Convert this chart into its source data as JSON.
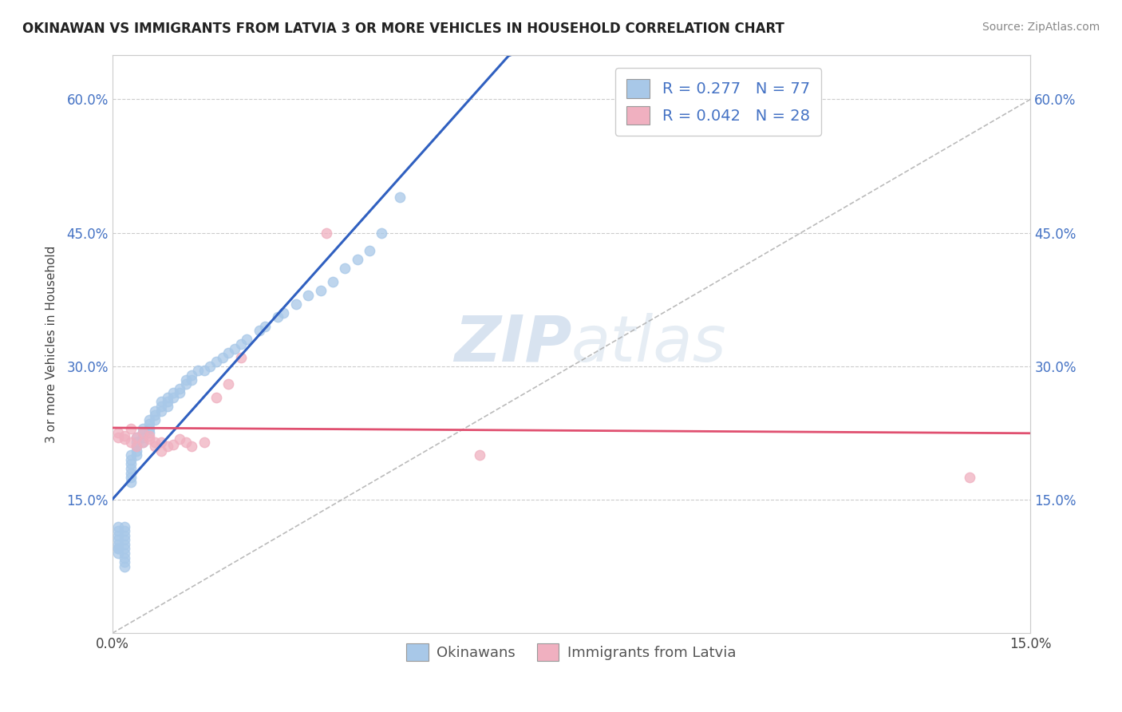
{
  "title": "OKINAWAN VS IMMIGRANTS FROM LATVIA 3 OR MORE VEHICLES IN HOUSEHOLD CORRELATION CHART",
  "source": "Source: ZipAtlas.com",
  "ylabel": "3 or more Vehicles in Household",
  "xlim": [
    0.0,
    0.15
  ],
  "ylim": [
    0.0,
    0.65
  ],
  "ytick_positions": [
    0.15,
    0.3,
    0.45,
    0.6
  ],
  "ytick_labels": [
    "15.0%",
    "30.0%",
    "45.0%",
    "60.0%"
  ],
  "xtick_positions": [
    0.0,
    0.15
  ],
  "xtick_labels": [
    "0.0%",
    "15.0%"
  ],
  "legend_labels": [
    "Okinawans",
    "Immigrants from Latvia"
  ],
  "okinawan_color": "#a8c8e8",
  "latvia_color": "#f0b0c0",
  "okinawan_line_color": "#3060c0",
  "latvia_line_color": "#e05070",
  "R_okinawan": 0.277,
  "N_okinawan": 77,
  "R_latvia": 0.042,
  "N_latvia": 28,
  "watermark_zip": "ZIP",
  "watermark_atlas": "atlas",
  "okinawan_x": [
    0.001,
    0.001,
    0.001,
    0.001,
    0.001,
    0.001,
    0.001,
    0.001,
    0.002,
    0.002,
    0.002,
    0.002,
    0.002,
    0.002,
    0.002,
    0.002,
    0.002,
    0.002,
    0.003,
    0.003,
    0.003,
    0.003,
    0.003,
    0.003,
    0.003,
    0.004,
    0.004,
    0.004,
    0.004,
    0.004,
    0.005,
    0.005,
    0.005,
    0.005,
    0.006,
    0.006,
    0.006,
    0.006,
    0.007,
    0.007,
    0.007,
    0.008,
    0.008,
    0.008,
    0.009,
    0.009,
    0.009,
    0.01,
    0.01,
    0.011,
    0.011,
    0.012,
    0.012,
    0.013,
    0.013,
    0.014,
    0.015,
    0.016,
    0.017,
    0.018,
    0.019,
    0.02,
    0.021,
    0.022,
    0.024,
    0.025,
    0.027,
    0.028,
    0.03,
    0.032,
    0.034,
    0.036,
    0.038,
    0.04,
    0.042,
    0.044,
    0.047
  ],
  "okinawan_y": [
    0.095,
    0.1,
    0.105,
    0.11,
    0.115,
    0.12,
    0.095,
    0.09,
    0.1,
    0.105,
    0.11,
    0.115,
    0.12,
    0.095,
    0.09,
    0.085,
    0.08,
    0.075,
    0.18,
    0.185,
    0.19,
    0.195,
    0.2,
    0.175,
    0.17,
    0.2,
    0.205,
    0.21,
    0.215,
    0.22,
    0.215,
    0.22,
    0.225,
    0.23,
    0.225,
    0.23,
    0.235,
    0.24,
    0.24,
    0.245,
    0.25,
    0.25,
    0.255,
    0.26,
    0.255,
    0.26,
    0.265,
    0.265,
    0.27,
    0.27,
    0.275,
    0.28,
    0.285,
    0.285,
    0.29,
    0.295,
    0.295,
    0.3,
    0.305,
    0.31,
    0.315,
    0.32,
    0.325,
    0.33,
    0.34,
    0.345,
    0.355,
    0.36,
    0.37,
    0.38,
    0.385,
    0.395,
    0.41,
    0.42,
    0.43,
    0.45,
    0.49
  ],
  "latvia_x": [
    0.001,
    0.001,
    0.002,
    0.002,
    0.003,
    0.003,
    0.004,
    0.004,
    0.005,
    0.005,
    0.006,
    0.006,
    0.007,
    0.007,
    0.008,
    0.008,
    0.009,
    0.01,
    0.011,
    0.012,
    0.013,
    0.015,
    0.017,
    0.019,
    0.021,
    0.035,
    0.06,
    0.14
  ],
  "latvia_y": [
    0.22,
    0.225,
    0.218,
    0.222,
    0.215,
    0.23,
    0.21,
    0.22,
    0.215,
    0.225,
    0.218,
    0.222,
    0.21,
    0.215,
    0.205,
    0.215,
    0.21,
    0.212,
    0.218,
    0.215,
    0.21,
    0.215,
    0.265,
    0.28,
    0.31,
    0.45,
    0.2,
    0.175
  ]
}
